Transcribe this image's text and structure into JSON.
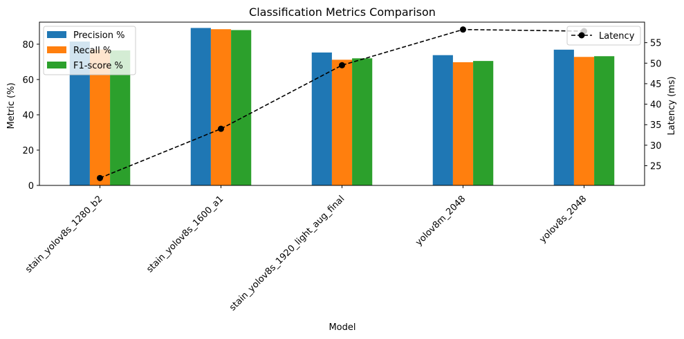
{
  "chart_data": {
    "type": "bar",
    "title": "Classification Metrics Comparison",
    "xlabel": "Model",
    "ylabel": "Metric (%)",
    "y2label": "Latency (ms)",
    "categories": [
      "stain_yolov8s_1280_b2",
      "stain_yolov8s_1600_a1",
      "stain_yolov8s_1920_light_aug_final",
      "yolov8m_2048",
      "yolov8s_2048"
    ],
    "series": [
      {
        "name": "Precision %",
        "color": "#1f77b4",
        "values": [
          81.5,
          89.2,
          75.3,
          73.8,
          76.9
        ]
      },
      {
        "name": "Recall %",
        "color": "#ff7f0e",
        "values": [
          77.0,
          88.5,
          71.2,
          69.8,
          72.8
        ]
      },
      {
        "name": "F1-score %",
        "color": "#2ca02c",
        "values": [
          76.5,
          88.0,
          72.0,
          70.5,
          73.2
        ]
      }
    ],
    "line_series": {
      "name": "Latency",
      "color": "#000000",
      "style": "dashed",
      "marker": "circle",
      "axis": "right",
      "values": [
        22.0,
        34.0,
        49.5,
        58.2,
        57.8
      ]
    },
    "ylim": [
      0,
      92.5
    ],
    "y_ticks": [
      0,
      20,
      40,
      60,
      80
    ],
    "y2lim": [
      20.2,
      60.0
    ],
    "y2_ticks": [
      25,
      30,
      35,
      40,
      45,
      50,
      55
    ],
    "legend_left": "upper-left",
    "legend_right": "upper-right",
    "grid": false
  }
}
